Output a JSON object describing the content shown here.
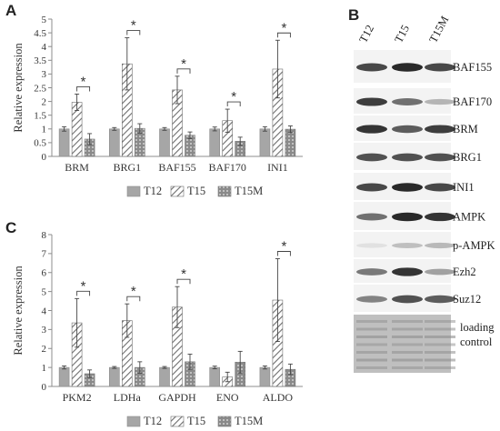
{
  "panel_labels": {
    "a": "A",
    "b": "B",
    "c": "C"
  },
  "legend_labels": [
    "T12",
    "T15",
    "T15M"
  ],
  "colors": {
    "t12": "#a6a6a6",
    "hatch": "#6e6e6e",
    "dots": "#8a8a8a",
    "axis": "#8c8c8c",
    "error": "#444444"
  },
  "chart_data": [
    {
      "type": "bar",
      "panel": "A",
      "ylabel": "Relative expression",
      "ylim": [
        0,
        5
      ],
      "yticks": [
        "0",
        "0.5",
        "1",
        "1.5",
        "2",
        "2.5",
        "3",
        "3.5",
        "4",
        "4.5",
        "5"
      ],
      "categories": [
        "BRM",
        "BRG1",
        "BAF155",
        "BAF170",
        "INI1"
      ],
      "series": [
        {
          "name": "T12",
          "values": [
            1.0,
            1.0,
            1.0,
            1.0,
            1.0
          ],
          "errors": [
            0.08,
            0.05,
            0.05,
            0.07,
            0.08
          ]
        },
        {
          "name": "T15",
          "values": [
            1.97,
            3.37,
            2.42,
            1.3,
            3.18
          ],
          "errors": [
            0.3,
            0.95,
            0.5,
            0.42,
            1.05
          ]
        },
        {
          "name": "T15M",
          "values": [
            0.63,
            1.02,
            0.77,
            0.55,
            0.99
          ],
          "errors": [
            0.2,
            0.17,
            0.12,
            0.15,
            0.12
          ]
        }
      ],
      "significance": [
        {
          "category": "BRM",
          "label": "*"
        },
        {
          "category": "BRG1",
          "label": "*"
        },
        {
          "category": "BAF155",
          "label": "*"
        },
        {
          "category": "BAF170",
          "label": "*"
        },
        {
          "category": "INI1",
          "label": "*"
        }
      ],
      "grid": false,
      "legend": "bottom"
    },
    {
      "type": "bar",
      "panel": "C",
      "ylabel": "Relative expression",
      "ylim": [
        0,
        8
      ],
      "yticks": [
        "0",
        "1",
        "2",
        "3",
        "4",
        "5",
        "6",
        "7",
        "8"
      ],
      "categories": [
        "PKM2",
        "LDHa",
        "GAPDH",
        "ENO",
        "ALDO"
      ],
      "series": [
        {
          "name": "T12",
          "values": [
            1.0,
            1.0,
            1.0,
            1.0,
            1.0
          ],
          "errors": [
            0.08,
            0.05,
            0.05,
            0.07,
            0.08
          ]
        },
        {
          "name": "T15",
          "values": [
            3.35,
            3.47,
            4.18,
            0.5,
            4.55
          ],
          "errors": [
            1.28,
            0.88,
            1.08,
            0.25,
            2.18
          ]
        },
        {
          "name": "T15M",
          "values": [
            0.67,
            1.0,
            1.3,
            1.28,
            0.9
          ],
          "errors": [
            0.2,
            0.3,
            0.4,
            0.57,
            0.28
          ]
        }
      ],
      "significance": [
        {
          "category": "PKM2",
          "label": "*"
        },
        {
          "category": "LDHa",
          "label": "*"
        },
        {
          "category": "GAPDH",
          "label": "*"
        },
        {
          "category": "ALDO",
          "label": "*"
        }
      ],
      "grid": false,
      "legend": "bottom"
    }
  ],
  "blot": {
    "lanes": [
      "T12",
      "T15",
      "T15M"
    ],
    "rows": [
      {
        "label": "BAF155",
        "intensity": [
          0.85,
          1.0,
          0.85
        ]
      },
      {
        "label": "BAF170",
        "intensity": [
          0.9,
          0.65,
          0.3
        ]
      },
      {
        "label": "BRM",
        "intensity": [
          0.95,
          0.75,
          0.9
        ]
      },
      {
        "label": "BRG1",
        "intensity": [
          0.8,
          0.8,
          0.8
        ]
      },
      {
        "label": "INI1",
        "intensity": [
          0.85,
          1.0,
          0.85
        ]
      },
      {
        "label": "AMPK",
        "intensity": [
          0.65,
          1.0,
          0.95
        ]
      },
      {
        "label": "p-AMPK",
        "intensity": [
          0.08,
          0.25,
          0.28
        ]
      },
      {
        "label": "Ezh2",
        "intensity": [
          0.6,
          0.95,
          0.4
        ]
      },
      {
        "label": "Suz12",
        "intensity": [
          0.55,
          0.8,
          0.75
        ]
      },
      {
        "label": "loading control",
        "intensity": [
          0.7,
          0.7,
          0.7
        ]
      }
    ]
  }
}
